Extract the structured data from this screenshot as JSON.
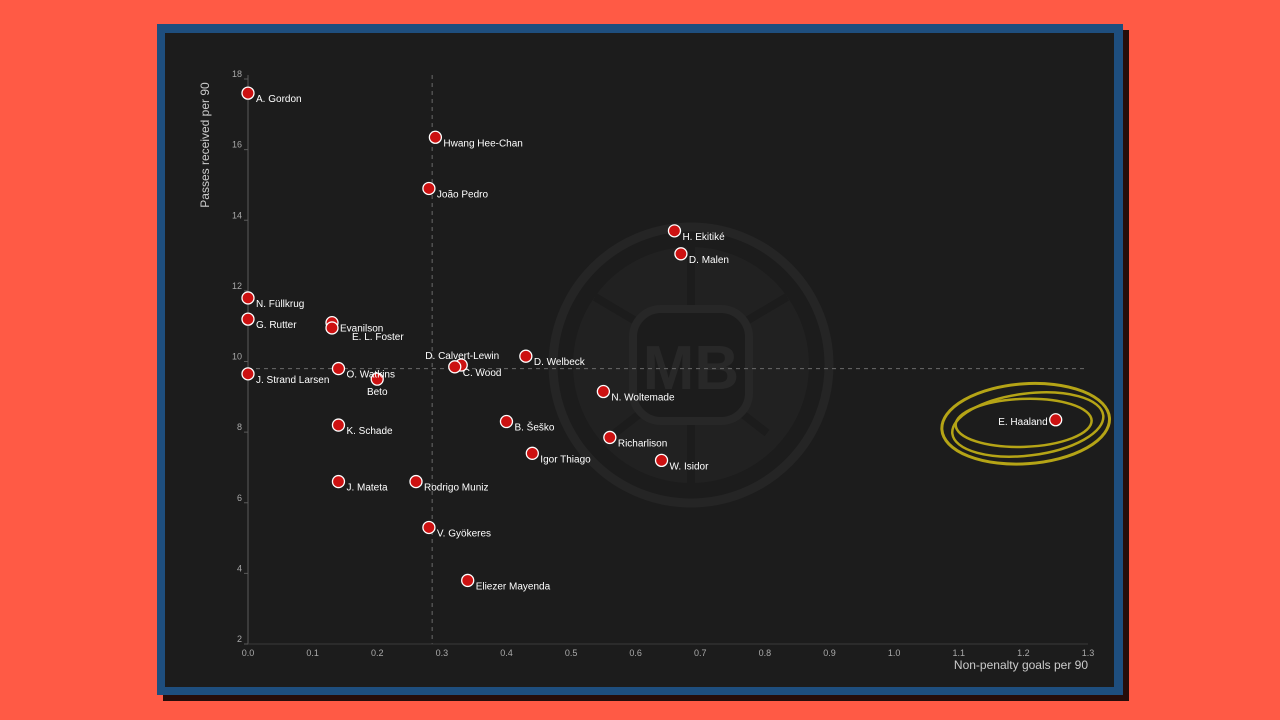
{
  "colors": {
    "page_bg": "#ff5a45",
    "frame": "#1e4e7e",
    "panel_bg": "#1c1c1c",
    "point": "#cc1111",
    "highlight": "#b5a416",
    "text": "#ffffff",
    "axis_text": "#aaaaaa"
  },
  "watermark": "MB",
  "chart_data": {
    "type": "scatter",
    "title": "",
    "xlabel": "Non-penalty goals per 90",
    "ylabel": "Passes received per 90",
    "xlim": [
      0.0,
      1.3
    ],
    "ylim": [
      2,
      18
    ],
    "xticks": [
      "0.0",
      "0.1",
      "0.2",
      "0.3",
      "0.4",
      "0.5",
      "0.6",
      "0.7",
      "0.8",
      "0.9",
      "1.0",
      "1.1",
      "1.2",
      "1.3"
    ],
    "yticks": [
      "2",
      "4",
      "6",
      "8",
      "10",
      "12",
      "14",
      "16",
      "18"
    ],
    "reference_lines": {
      "x": 0.285,
      "y": 9.8
    },
    "highlight": "E. Haaland",
    "points": [
      {
        "name": "A. Gordon",
        "x": 0.0,
        "y": 17.6,
        "label_pos": "right"
      },
      {
        "name": "Hwang Hee-Chan",
        "x": 0.29,
        "y": 16.35,
        "label_pos": "right"
      },
      {
        "name": "João Pedro",
        "x": 0.28,
        "y": 14.9,
        "label_pos": "right"
      },
      {
        "name": "H. Ekitiké",
        "x": 0.66,
        "y": 13.7,
        "label_pos": "right"
      },
      {
        "name": "D. Malen",
        "x": 0.67,
        "y": 13.05,
        "label_pos": "right"
      },
      {
        "name": "N. Füllkrug",
        "x": 0.0,
        "y": 11.8,
        "label_pos": "right"
      },
      {
        "name": "G. Rutter",
        "x": 0.0,
        "y": 11.2,
        "label_pos": "right"
      },
      {
        "name": "Evanilson",
        "x": 0.13,
        "y": 11.1,
        "label_pos": "right"
      },
      {
        "name": "E. L. Foster",
        "x": 0.13,
        "y": 10.95,
        "label_pos": "right-below"
      },
      {
        "name": "D. Calvert-Lewin",
        "x": 0.33,
        "y": 9.9,
        "label_pos": "above-left"
      },
      {
        "name": "C. Wood",
        "x": 0.32,
        "y": 9.85,
        "label_pos": "right"
      },
      {
        "name": "D. Welbeck",
        "x": 0.43,
        "y": 10.15,
        "label_pos": "right"
      },
      {
        "name": "J. Strand Larsen",
        "x": 0.0,
        "y": 9.65,
        "label_pos": "right"
      },
      {
        "name": "O. Watkins",
        "x": 0.14,
        "y": 9.8,
        "label_pos": "right"
      },
      {
        "name": "Beto",
        "x": 0.2,
        "y": 9.5,
        "label_pos": "below"
      },
      {
        "name": "N. Woltemade",
        "x": 0.55,
        "y": 9.15,
        "label_pos": "right"
      },
      {
        "name": "E. Haaland",
        "x": 1.25,
        "y": 8.35,
        "label_pos": "left"
      },
      {
        "name": "K. Schade",
        "x": 0.14,
        "y": 8.2,
        "label_pos": "right"
      },
      {
        "name": "B. Šeško",
        "x": 0.4,
        "y": 8.3,
        "label_pos": "right"
      },
      {
        "name": "Richarlison",
        "x": 0.56,
        "y": 7.85,
        "label_pos": "right"
      },
      {
        "name": "Igor Thiago",
        "x": 0.44,
        "y": 7.4,
        "label_pos": "right"
      },
      {
        "name": "W. Isidor",
        "x": 0.64,
        "y": 7.2,
        "label_pos": "right"
      },
      {
        "name": "J. Mateta",
        "x": 0.14,
        "y": 6.6,
        "label_pos": "right"
      },
      {
        "name": "Rodrigo Muniz",
        "x": 0.26,
        "y": 6.6,
        "label_pos": "right"
      },
      {
        "name": "V. Gyökeres",
        "x": 0.28,
        "y": 5.3,
        "label_pos": "right"
      },
      {
        "name": "Eliezer Mayenda",
        "x": 0.34,
        "y": 3.8,
        "label_pos": "right"
      }
    ]
  }
}
